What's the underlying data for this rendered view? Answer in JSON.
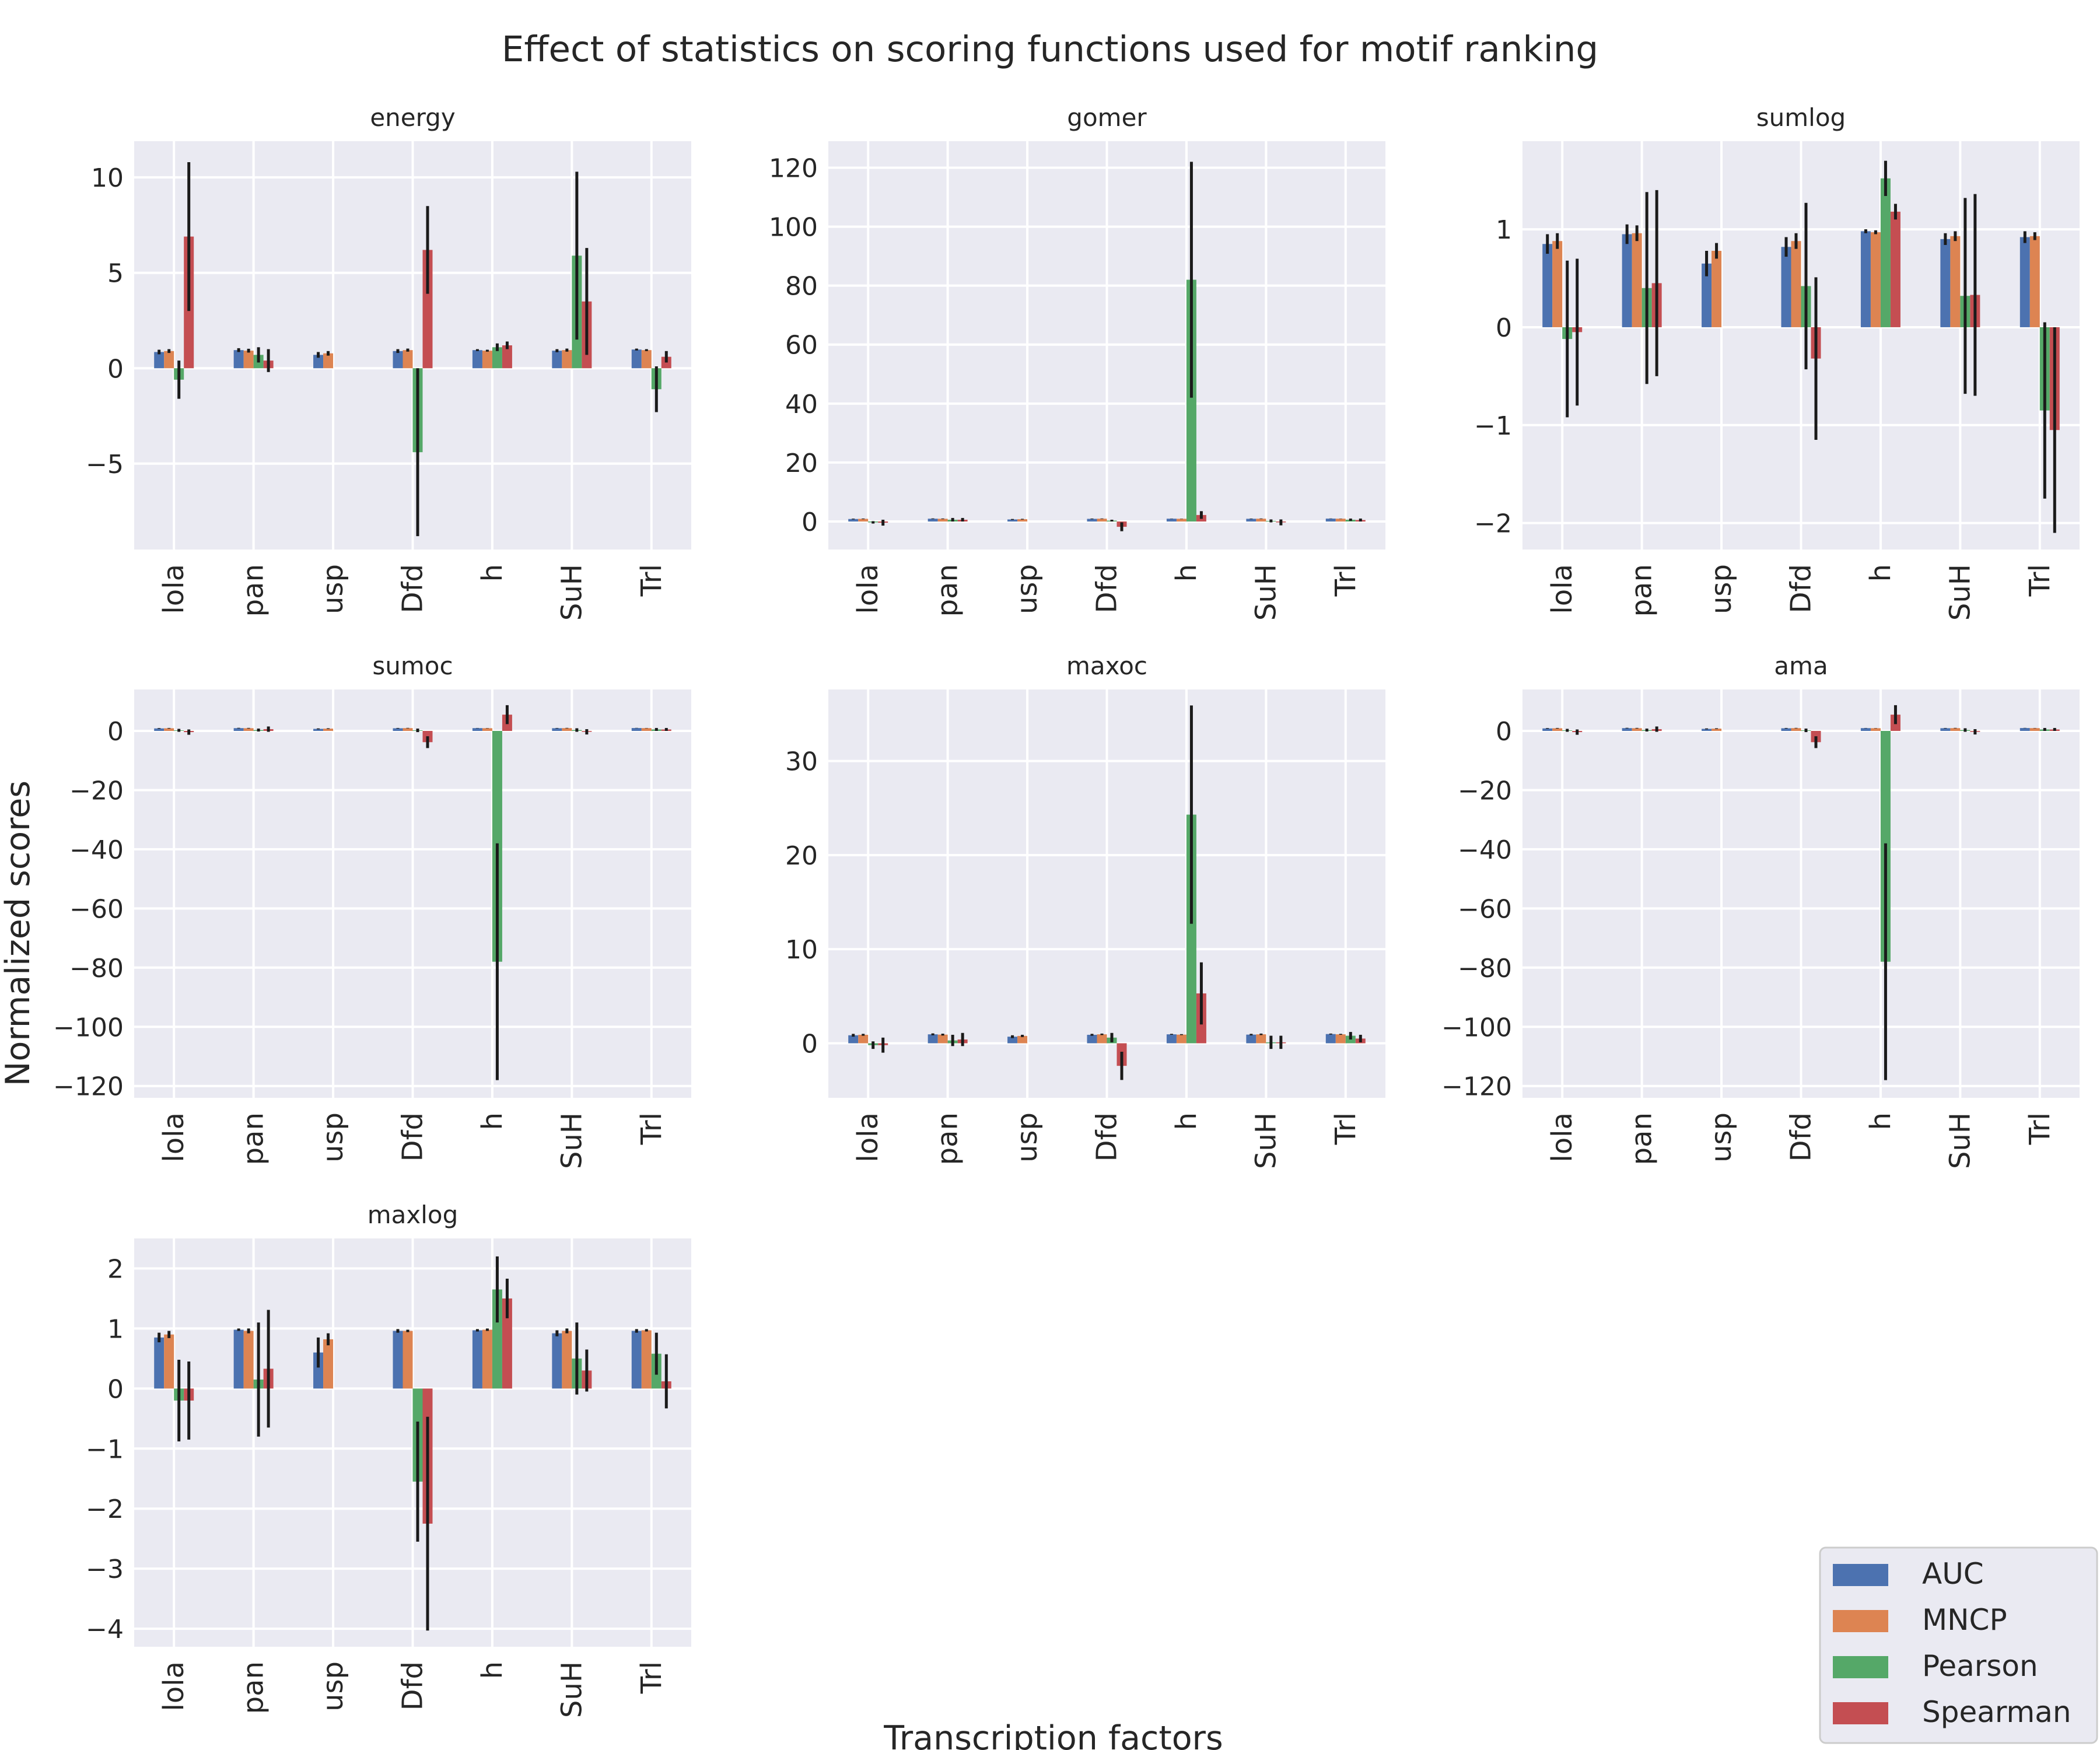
{
  "figure": {
    "title": "Effect of statistics on scoring functions used for motif ranking",
    "xlabel": "Transcription factors",
    "ylabel": "Normalized scores"
  },
  "legend": {
    "placement": "bottom-right",
    "entries": [
      {
        "label": "AUC",
        "color": "#4c72b0"
      },
      {
        "label": "MNCP",
        "color": "#dd8452"
      },
      {
        "label": "Pearson",
        "color": "#55a868"
      },
      {
        "label": "Spearman",
        "color": "#c44e52"
      }
    ]
  },
  "chart_data": [
    {
      "type": "bar",
      "title": "energy",
      "categories": [
        "lola",
        "pan",
        "usp",
        "Dfd",
        "h",
        "SuH",
        "Trl"
      ],
      "ylim": [
        -9.5,
        11.9
      ],
      "yticks": [
        -5,
        0,
        5,
        10
      ],
      "series": [
        {
          "name": "AUC",
          "values": [
            0.85,
            0.95,
            0.7,
            0.9,
            0.95,
            0.92,
            0.98
          ],
          "err": [
            0.12,
            0.1,
            0.15,
            0.1,
            0.05,
            0.08,
            0.05
          ]
        },
        {
          "name": "MNCP",
          "values": [
            0.9,
            0.92,
            0.78,
            0.95,
            0.92,
            0.95,
            0.95
          ],
          "err": [
            0.1,
            0.1,
            0.12,
            0.08,
            0.05,
            0.08,
            0.05
          ]
        },
        {
          "name": "Pearson",
          "values": [
            -0.6,
            0.7,
            0,
            -4.4,
            1.1,
            5.9,
            -1.1
          ],
          "err": [
            1.0,
            0.4,
            0,
            4.4,
            0.2,
            4.4,
            1.2
          ]
        },
        {
          "name": "Spearman",
          "values": [
            6.9,
            0.4,
            0,
            6.2,
            1.2,
            3.5,
            0.6
          ],
          "err": [
            3.9,
            0.6,
            0,
            2.3,
            0.2,
            2.8,
            0.3
          ]
        }
      ]
    },
    {
      "type": "bar",
      "title": "gomer",
      "categories": [
        "lola",
        "pan",
        "usp",
        "Dfd",
        "h",
        "SuH",
        "Trl"
      ],
      "ylim": [
        -9.5,
        129
      ],
      "yticks": [
        0,
        20,
        40,
        60,
        80,
        100,
        120
      ],
      "series": [
        {
          "name": "AUC",
          "values": [
            0.85,
            0.95,
            0.7,
            0.9,
            0.95,
            0.92,
            0.98
          ],
          "err": [
            0.12,
            0.1,
            0.15,
            0.1,
            0.05,
            0.08,
            0.05
          ]
        },
        {
          "name": "MNCP",
          "values": [
            0.9,
            0.92,
            0.78,
            0.95,
            0.92,
            0.95,
            0.95
          ],
          "err": [
            0.1,
            0.1,
            0.12,
            0.08,
            0.05,
            0.08,
            0.05
          ]
        },
        {
          "name": "Pearson",
          "values": [
            -0.3,
            0.6,
            0,
            0.3,
            82,
            0.2,
            0.6
          ],
          "err": [
            0.4,
            0.6,
            0,
            0.3,
            40,
            0.5,
            0.4
          ]
        },
        {
          "name": "Spearman",
          "values": [
            -0.4,
            0.6,
            0,
            -1.8,
            2.2,
            -0.3,
            0.5
          ],
          "err": [
            1.0,
            0.6,
            0,
            1.5,
            1.3,
            1.0,
            0.5
          ]
        }
      ]
    },
    {
      "type": "bar",
      "title": "sumlog",
      "categories": [
        "lola",
        "pan",
        "usp",
        "Dfd",
        "h",
        "SuH",
        "Trl"
      ],
      "ylim": [
        -2.27,
        1.9
      ],
      "yticks": [
        -2,
        -1,
        0,
        1
      ],
      "series": [
        {
          "name": "AUC",
          "values": [
            0.85,
            0.95,
            0.65,
            0.82,
            0.98,
            0.9,
            0.92
          ],
          "err": [
            0.1,
            0.1,
            0.13,
            0.1,
            0.02,
            0.06,
            0.06
          ]
        },
        {
          "name": "MNCP",
          "values": [
            0.88,
            0.96,
            0.78,
            0.88,
            0.97,
            0.93,
            0.93
          ],
          "err": [
            0.08,
            0.08,
            0.08,
            0.08,
            0.02,
            0.05,
            0.04
          ]
        },
        {
          "name": "Pearson",
          "values": [
            -0.12,
            0.4,
            0,
            0.42,
            1.52,
            0.32,
            -0.85
          ],
          "err": [
            0.8,
            0.98,
            0,
            0.85,
            0.18,
            1.0,
            0.9
          ]
        },
        {
          "name": "Spearman",
          "values": [
            -0.05,
            0.45,
            0,
            -0.32,
            1.18,
            0.33,
            -1.05
          ],
          "err": [
            0.75,
            0.95,
            0,
            0.83,
            0.08,
            1.03,
            1.05
          ]
        }
      ]
    },
    {
      "type": "bar",
      "title": "sumoc",
      "categories": [
        "lola",
        "pan",
        "usp",
        "Dfd",
        "h",
        "SuH",
        "Trl"
      ],
      "ylim": [
        -124,
        14
      ],
      "yticks": [
        -120,
        -100,
        -80,
        -60,
        -40,
        -20,
        0
      ],
      "series": [
        {
          "name": "AUC",
          "values": [
            0.85,
            0.95,
            0.7,
            0.9,
            0.95,
            0.92,
            0.98
          ],
          "err": [
            0.12,
            0.1,
            0.15,
            0.1,
            0.05,
            0.08,
            0.05
          ]
        },
        {
          "name": "MNCP",
          "values": [
            0.9,
            0.92,
            0.78,
            0.95,
            0.92,
            0.95,
            0.95
          ],
          "err": [
            0.1,
            0.1,
            0.12,
            0.08,
            0.05,
            0.08,
            0.05
          ]
        },
        {
          "name": "Pearson",
          "values": [
            0.2,
            0.3,
            0,
            0.2,
            -78,
            0.3,
            0.5
          ],
          "err": [
            0.5,
            0.5,
            0,
            0.6,
            40,
            0.6,
            0.5
          ]
        },
        {
          "name": "Spearman",
          "values": [
            -0.4,
            0.6,
            0,
            -3.8,
            5.5,
            -0.3,
            0.5
          ],
          "err": [
            0.9,
            0.9,
            0,
            2.0,
            3.2,
            0.9,
            0.5
          ]
        }
      ]
    },
    {
      "type": "bar",
      "title": "maxoc",
      "categories": [
        "lola",
        "pan",
        "usp",
        "Dfd",
        "h",
        "SuH",
        "Trl"
      ],
      "ylim": [
        -5.8,
        37.6
      ],
      "yticks": [
        0,
        10,
        20,
        30
      ],
      "series": [
        {
          "name": "AUC",
          "values": [
            0.85,
            0.95,
            0.7,
            0.9,
            0.95,
            0.92,
            0.98
          ],
          "err": [
            0.15,
            0.1,
            0.15,
            0.1,
            0.05,
            0.08,
            0.05
          ]
        },
        {
          "name": "MNCP",
          "values": [
            0.9,
            0.92,
            0.78,
            0.95,
            0.92,
            0.95,
            0.95
          ],
          "err": [
            0.1,
            0.1,
            0.12,
            0.08,
            0.05,
            0.08,
            0.05
          ]
        },
        {
          "name": "Pearson",
          "values": [
            -0.2,
            0.3,
            0,
            0.6,
            24.3,
            0.1,
            0.8
          ],
          "err": [
            0.4,
            0.6,
            0,
            0.5,
            11.6,
            0.7,
            0.4
          ]
        },
        {
          "name": "Spearman",
          "values": [
            -0.2,
            0.4,
            0,
            -2.4,
            5.3,
            0.1,
            0.5
          ],
          "err": [
            0.8,
            0.7,
            0,
            1.5,
            3.3,
            0.7,
            0.4
          ]
        }
      ]
    },
    {
      "type": "bar",
      "title": "ama",
      "categories": [
        "lola",
        "pan",
        "usp",
        "Dfd",
        "h",
        "SuH",
        "Trl"
      ],
      "ylim": [
        -124,
        14
      ],
      "yticks": [
        -120,
        -100,
        -80,
        -60,
        -40,
        -20,
        0
      ],
      "series": [
        {
          "name": "AUC",
          "values": [
            0.85,
            0.95,
            0.7,
            0.9,
            0.95,
            0.92,
            0.98
          ],
          "err": [
            0.12,
            0.1,
            0.15,
            0.1,
            0.05,
            0.08,
            0.05
          ]
        },
        {
          "name": "MNCP",
          "values": [
            0.9,
            0.92,
            0.78,
            0.95,
            0.92,
            0.95,
            0.95
          ],
          "err": [
            0.1,
            0.1,
            0.12,
            0.08,
            0.05,
            0.08,
            0.05
          ]
        },
        {
          "name": "Pearson",
          "values": [
            0.2,
            0.3,
            0,
            0.2,
            -78,
            0.3,
            0.5
          ],
          "err": [
            0.5,
            0.5,
            0,
            0.6,
            40,
            0.6,
            0.5
          ]
        },
        {
          "name": "Spearman",
          "values": [
            -0.4,
            0.6,
            0,
            -3.8,
            5.5,
            -0.3,
            0.5
          ],
          "err": [
            0.9,
            0.9,
            0,
            2.0,
            3.2,
            0.9,
            0.5
          ]
        }
      ]
    },
    {
      "type": "bar",
      "title": "maxlog",
      "categories": [
        "lola",
        "pan",
        "usp",
        "Dfd",
        "h",
        "SuH",
        "Trl"
      ],
      "ylim": [
        -4.3,
        2.5
      ],
      "yticks": [
        -4,
        -3,
        -2,
        -1,
        0,
        1,
        2
      ],
      "series": [
        {
          "name": "AUC",
          "values": [
            0.85,
            0.98,
            0.6,
            0.96,
            0.97,
            0.92,
            0.96
          ],
          "err": [
            0.08,
            0.02,
            0.25,
            0.03,
            0.02,
            0.05,
            0.03
          ]
        },
        {
          "name": "MNCP",
          "values": [
            0.9,
            0.96,
            0.82,
            0.96,
            0.98,
            0.96,
            0.97
          ],
          "err": [
            0.06,
            0.04,
            0.1,
            0.02,
            0.02,
            0.04,
            0.02
          ]
        },
        {
          "name": "Pearson",
          "values": [
            -0.2,
            0.15,
            0,
            -1.55,
            1.65,
            0.5,
            0.58
          ],
          "err": [
            0.68,
            0.95,
            0,
            1.0,
            0.55,
            0.6,
            0.35
          ]
        },
        {
          "name": "Spearman",
          "values": [
            -0.2,
            0.33,
            0,
            -2.25,
            1.5,
            0.3,
            0.12
          ],
          "err": [
            0.65,
            0.98,
            0,
            1.78,
            0.33,
            0.35,
            0.45
          ]
        }
      ]
    }
  ]
}
